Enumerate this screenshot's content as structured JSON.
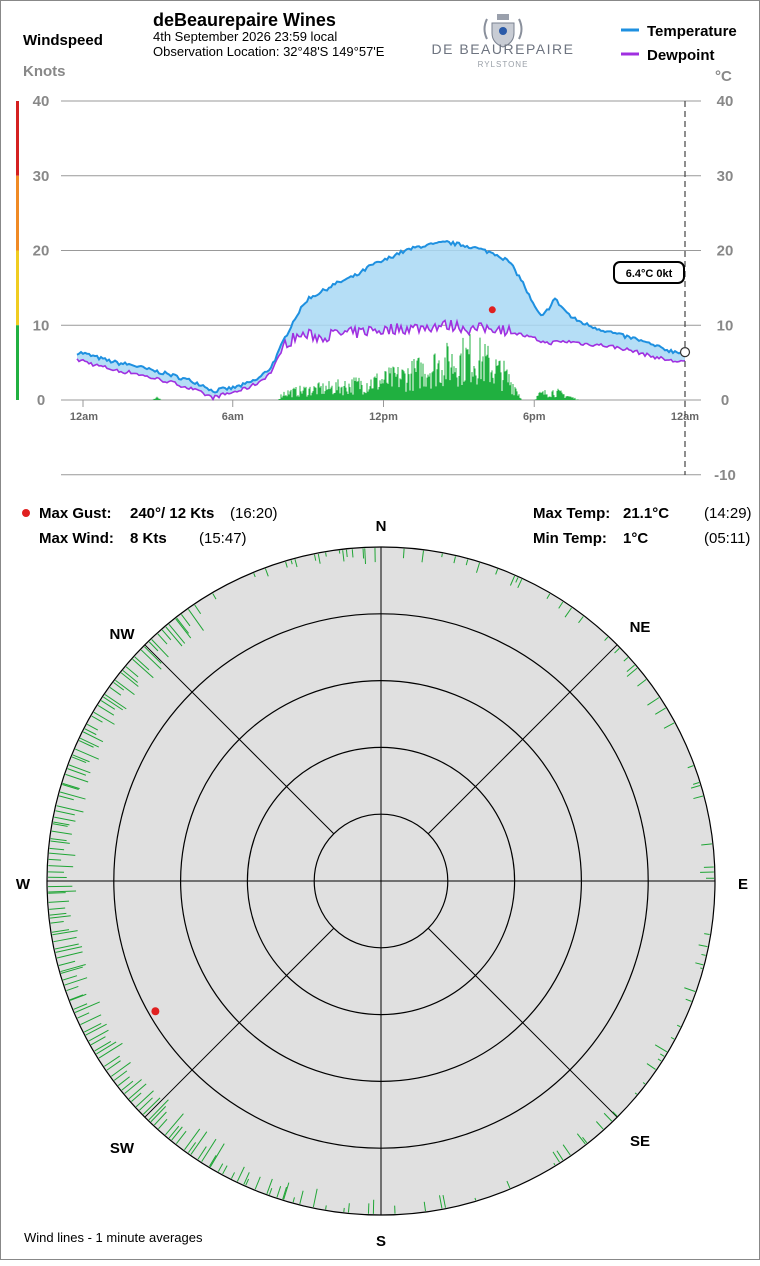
{
  "header": {
    "title": "deBeaurepaire Wines",
    "date_line": "4th September 2026  23:59 local",
    "location_line": "Observation Location: 32°48'S 149°57'E",
    "left_axis_title": "Windspeed",
    "left_axis_units": "Knots",
    "right_axis_units": "°C"
  },
  "logo": {
    "name": "DE BEAUREPAIRE",
    "sub": "RYLSTONE"
  },
  "legend": {
    "temperature": "Temperature",
    "dewpoint": "Dewpoint",
    "temperature_color": "#1e90e0",
    "dewpoint_color": "#a030e0"
  },
  "current_readout": "6.4°C  0kt",
  "stats": {
    "max_gust_label": "Max Gust:",
    "max_gust_value": "240°/ 12 Kts",
    "max_gust_time": "(16:20)",
    "max_wind_label": "Max Wind:",
    "max_wind_value": "8 Kts",
    "max_wind_time": "(15:47)",
    "max_temp_label": "Max Temp:",
    "max_temp_value": "21.1°C",
    "max_temp_time": "(14:29)",
    "min_temp_label": "Min Temp:",
    "min_temp_value": "1°C",
    "min_temp_time": "(05:11)"
  },
  "compass": {
    "n": "N",
    "ne": "NE",
    "e": "E",
    "se": "SE",
    "s": "S",
    "sw": "SW",
    "w": "W",
    "nw": "NW"
  },
  "footer_note": "Wind lines - 1 minute averages",
  "chart_data": {
    "type": "line",
    "x_tick_labels": [
      "12am",
      "6am",
      "12pm",
      "6pm",
      "12am"
    ],
    "x_unit": "hours",
    "xlim": [
      0,
      24
    ],
    "left_axis": {
      "ticks": [
        "40",
        "30",
        "20",
        "10",
        "0"
      ],
      "ylim": [
        0,
        40
      ]
    },
    "right_axis": {
      "ticks": [
        "40",
        "30",
        "20",
        "10",
        "0",
        "-10"
      ],
      "ylim": [
        -10,
        40
      ]
    },
    "wind_scale_colors": [
      "#d42020",
      "#f08a24",
      "#f0cc20",
      "#20b040"
    ],
    "series": [
      {
        "name": "Temperature",
        "color": "#1e90e0",
        "points": [
          [
            0,
            6.3
          ],
          [
            0.5,
            5.8
          ],
          [
            1,
            5.3
          ],
          [
            1.5,
            4.9
          ],
          [
            2,
            4.7
          ],
          [
            2.5,
            4.2
          ],
          [
            3,
            3.8
          ],
          [
            3.5,
            3.4
          ],
          [
            4,
            2.9
          ],
          [
            4.5,
            2.4
          ],
          [
            5,
            1.7
          ],
          [
            5.2,
            1.1
          ],
          [
            5.5,
            1.4
          ],
          [
            6,
            1.6
          ],
          [
            6.5,
            2.1
          ],
          [
            7,
            2.8
          ],
          [
            7.5,
            4.3
          ],
          [
            7.8,
            6.2
          ],
          [
            8,
            7.8
          ],
          [
            8.5,
            11.1
          ],
          [
            9,
            13.6
          ],
          [
            9.5,
            14.4
          ],
          [
            10,
            15.4
          ],
          [
            10.5,
            16.1
          ],
          [
            11,
            16.8
          ],
          [
            11.5,
            18.0
          ],
          [
            12,
            18.6
          ],
          [
            12.5,
            19.5
          ],
          [
            13,
            20.1
          ],
          [
            13.5,
            20.6
          ],
          [
            14,
            20.8
          ],
          [
            14.5,
            21.1
          ],
          [
            15,
            20.8
          ],
          [
            15.5,
            20.5
          ],
          [
            16,
            20.0
          ],
          [
            16.5,
            19.5
          ],
          [
            17,
            18.5
          ],
          [
            17.5,
            16.0
          ],
          [
            18,
            12.5
          ],
          [
            18.3,
            11.0
          ],
          [
            18.6,
            12.4
          ],
          [
            18.8,
            13.6
          ],
          [
            19,
            12.8
          ],
          [
            19.5,
            11.0
          ],
          [
            20,
            10.2
          ],
          [
            20.5,
            9.6
          ],
          [
            21,
            9.1
          ],
          [
            21.5,
            8.6
          ],
          [
            22,
            8.2
          ],
          [
            22.5,
            7.6
          ],
          [
            23,
            7.0
          ],
          [
            23.5,
            6.5
          ],
          [
            24,
            6.4
          ]
        ]
      },
      {
        "name": "Dewpoint",
        "color": "#a030e0",
        "points": [
          [
            0,
            5.3
          ],
          [
            0.5,
            4.7
          ],
          [
            1,
            4.3
          ],
          [
            1.5,
            3.8
          ],
          [
            2,
            3.7
          ],
          [
            2.5,
            3.2
          ],
          [
            3,
            2.8
          ],
          [
            3.5,
            2.4
          ],
          [
            4,
            1.9
          ],
          [
            4.5,
            1.3
          ],
          [
            5,
            0.6
          ],
          [
            5.2,
            0.3
          ],
          [
            5.5,
            0.6
          ],
          [
            6,
            1.0
          ],
          [
            6.5,
            1.5
          ],
          [
            7,
            2.3
          ],
          [
            7.5,
            3.6
          ],
          [
            7.8,
            5.5
          ],
          [
            8,
            7.2
          ],
          [
            8.5,
            8.5
          ],
          [
            9,
            8.7
          ],
          [
            9.5,
            8.4
          ],
          [
            10,
            8.8
          ],
          [
            10.5,
            8.9
          ],
          [
            11,
            9.0
          ],
          [
            11.5,
            9.4
          ],
          [
            12,
            9.3
          ],
          [
            12.5,
            9.6
          ],
          [
            13,
            9.6
          ],
          [
            13.5,
            9.7
          ],
          [
            14,
            9.9
          ],
          [
            14.5,
            10.0
          ],
          [
            15,
            9.9
          ],
          [
            15.5,
            9.4
          ],
          [
            16,
            9.6
          ],
          [
            16.5,
            9.7
          ],
          [
            17,
            9.2
          ],
          [
            17.5,
            8.7
          ],
          [
            18,
            8.2
          ],
          [
            18.5,
            7.6
          ],
          [
            19,
            7.8
          ],
          [
            19.5,
            7.8
          ],
          [
            20,
            7.5
          ],
          [
            20.5,
            7.4
          ],
          [
            21,
            7.2
          ],
          [
            21.5,
            6.9
          ],
          [
            22,
            6.5
          ],
          [
            22.5,
            6.0
          ],
          [
            23,
            5.6
          ],
          [
            23.5,
            5.2
          ],
          [
            24,
            5.2
          ]
        ]
      },
      {
        "name": "Wind speed (1 minute averages)",
        "color": "#20b040",
        "envelope_kts": [
          [
            0,
            0
          ],
          [
            2.8,
            0
          ],
          [
            3,
            0.4
          ],
          [
            3.2,
            0
          ],
          [
            7.8,
            0
          ],
          [
            8,
            1.2
          ],
          [
            9,
            1.8
          ],
          [
            10,
            2.2
          ],
          [
            11,
            2.8
          ],
          [
            12,
            3.5
          ],
          [
            13,
            4.4
          ],
          [
            14,
            6.0
          ],
          [
            15,
            7.0
          ],
          [
            15.5,
            7.8
          ],
          [
            16,
            6.8
          ],
          [
            16.8,
            4.5
          ],
          [
            17.3,
            2.0
          ],
          [
            17.5,
            0
          ],
          [
            18,
            0
          ],
          [
            18.2,
            1.0
          ],
          [
            18.8,
            1.5
          ],
          [
            19.4,
            0.6
          ],
          [
            19.8,
            0
          ],
          [
            24,
            0
          ]
        ]
      }
    ],
    "markers": [
      {
        "name": "Max Gust",
        "time_hours": 16.33,
        "kts": 12,
        "direction_deg": 240
      }
    ],
    "current_time_hours": 24,
    "polar": {
      "type": "wind-direction polar",
      "rings": 4,
      "max_kts": 12,
      "bands": [
        {
          "from_deg": 210,
          "to_deg": 325,
          "density": 1.0,
          "min_len": 12,
          "max_len": 28
        },
        {
          "from_deg": 180,
          "to_deg": 210,
          "density": 0.5,
          "min_len": 3,
          "max_len": 20
        },
        {
          "from_deg": 325,
          "to_deg": 360,
          "density": 0.55,
          "min_len": 3,
          "max_len": 16
        },
        {
          "from_deg": 0,
          "to_deg": 45,
          "density": 0.35,
          "min_len": 3,
          "max_len": 12
        },
        {
          "from_deg": 45,
          "to_deg": 180,
          "density": 0.3,
          "min_len": 2,
          "max_len": 14
        }
      ]
    }
  }
}
